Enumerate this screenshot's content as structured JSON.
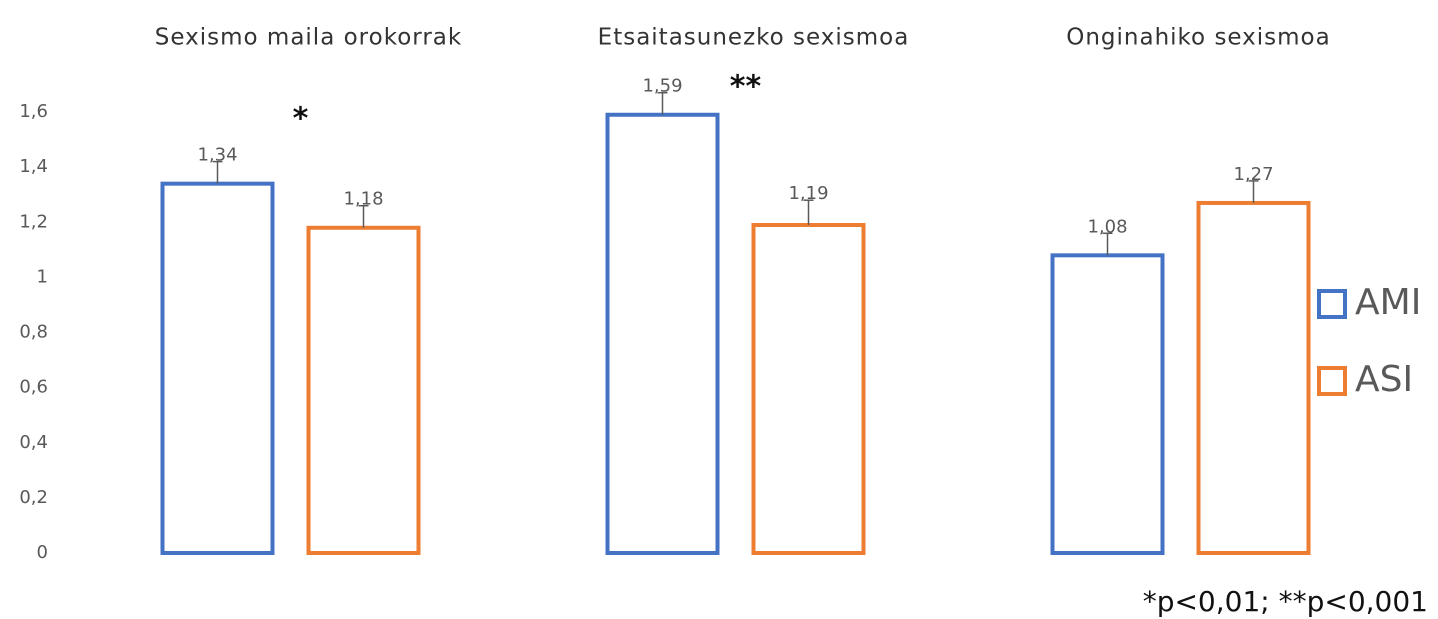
{
  "chart_data": {
    "type": "bar",
    "categories": [
      "Sexismo maila orokorrak",
      "Etsaitasunezko sexismoa",
      "Onginahiko sexismoa"
    ],
    "series": [
      {
        "name": "AMI",
        "color": "#4472c4",
        "values": [
          1.34,
          1.59,
          1.08
        ],
        "value_labels": [
          "1,34",
          "1,59",
          "1,08"
        ],
        "errors": [
          0.08,
          0.08,
          0.08
        ]
      },
      {
        "name": "ASI",
        "color": "#ed7d31",
        "values": [
          1.18,
          1.19,
          1.27
        ],
        "value_labels": [
          "1,18",
          "1,19",
          "1,27"
        ],
        "errors": [
          0.08,
          0.09,
          0.08
        ]
      }
    ],
    "ylim": [
      0,
      1.6
    ],
    "yticks": [
      0,
      {
        "value": 0.2,
        "label": "0,2"
      },
      {
        "value": 0.4,
        "label": "0,4"
      },
      {
        "value": 0.6,
        "label": "0,6"
      },
      {
        "value": 0.8,
        "label": "0,8"
      },
      1,
      {
        "value": 1.2,
        "label": "1,2"
      },
      {
        "value": 1.4,
        "label": "1,4"
      },
      {
        "value": 1.6,
        "label": "1,6"
      }
    ],
    "significance": [
      "*",
      "**",
      null
    ],
    "note": "*p<0,01; **p<0,001",
    "legend": "right",
    "grid": false
  }
}
